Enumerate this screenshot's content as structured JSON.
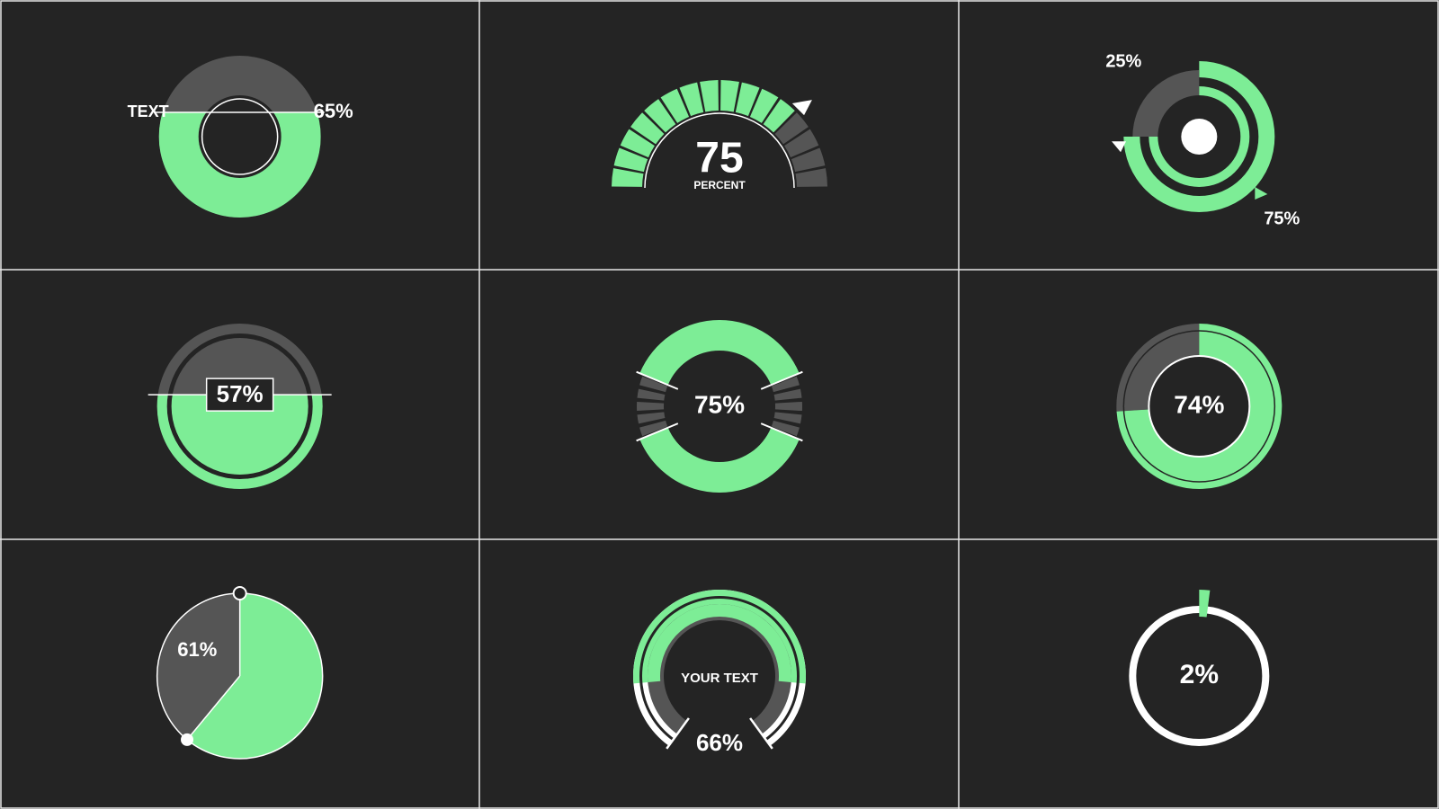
{
  "chart_data": [
    {
      "type": "level-donut",
      "label": "TEXT",
      "values": [
        65
      ],
      "value_labels": [
        "65%"
      ],
      "color": "#7ded96"
    },
    {
      "type": "segment-gauge",
      "subtitle": "PERCENT",
      "values": [
        75
      ],
      "color": "#7ded96"
    },
    {
      "type": "nested-rings",
      "values": [
        25,
        75
      ],
      "value_labels": [
        "25%",
        "75%"
      ],
      "color": "#7ded96"
    },
    {
      "type": "level-circle",
      "values": [
        57
      ],
      "value_labels": [
        "57%"
      ],
      "color": "#7ded96"
    },
    {
      "type": "split-ring",
      "values": [
        75
      ],
      "value_labels": [
        "75%"
      ],
      "color": "#7ded96"
    },
    {
      "type": "donut",
      "values": [
        74
      ],
      "value_labels": [
        "74%"
      ],
      "color": "#7ded96"
    },
    {
      "type": "pie",
      "values": [
        61
      ],
      "value_labels": [
        "61%"
      ],
      "color": "#7ded96"
    },
    {
      "type": "arc-gauge",
      "label": "YOUR TEXT",
      "values": [
        66
      ],
      "value_labels": [
        "66%"
      ],
      "color": "#7ded96"
    },
    {
      "type": "ring-progress",
      "values": [
        2
      ],
      "value_labels": [
        "2%"
      ],
      "color": "#7ded96"
    }
  ]
}
